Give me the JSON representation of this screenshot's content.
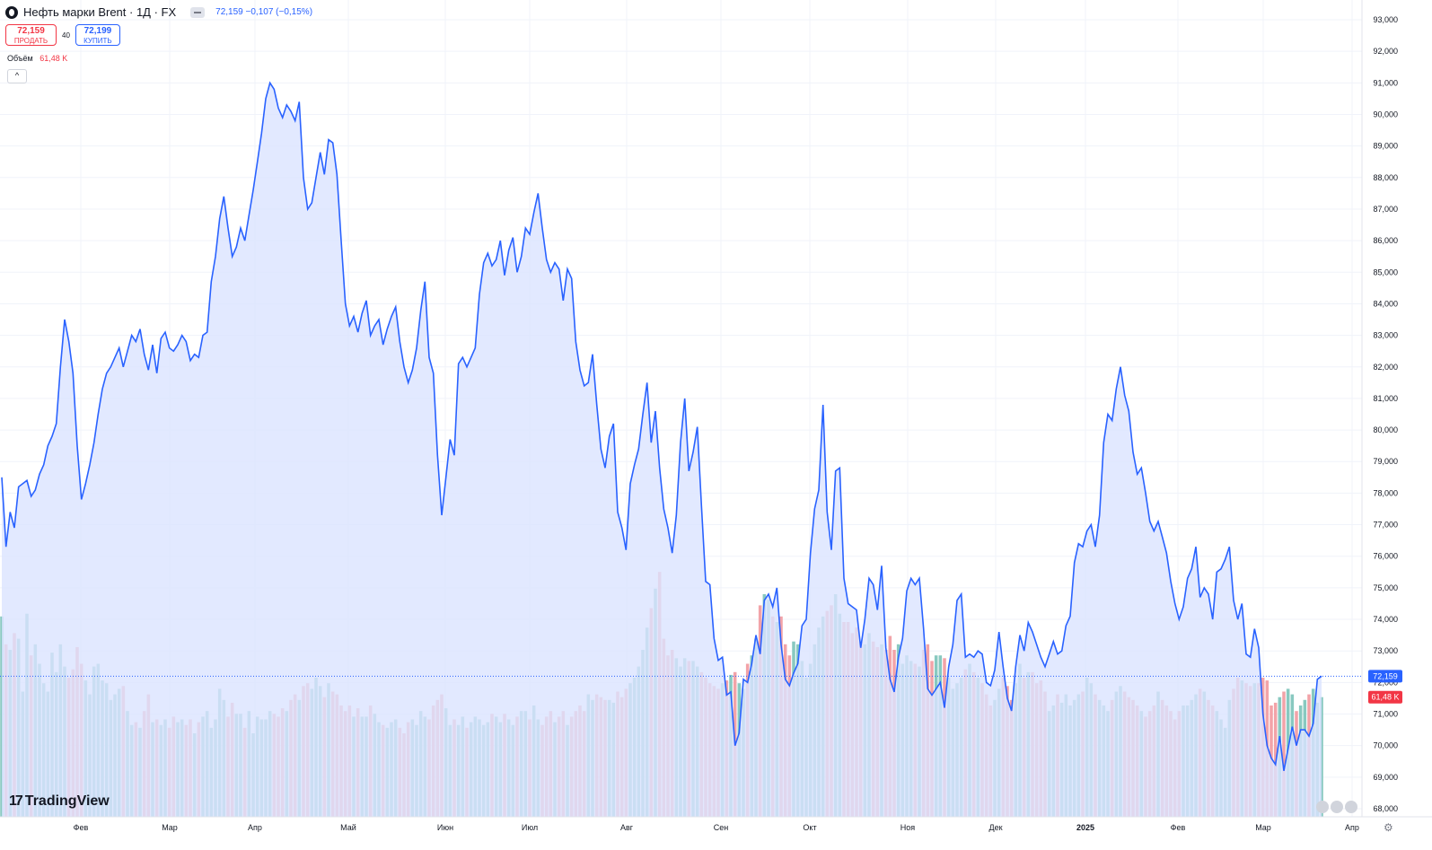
{
  "header": {
    "title": "Нефть марки Brent · 1Д · FX",
    "quote": "72,159 −0,107 (−0,15%)"
  },
  "trade": {
    "sell_price": "72,159",
    "sell_label": "ПРОДАТЬ",
    "spread": "40",
    "buy_price": "72,199",
    "buy_label": "КУПИТЬ"
  },
  "volume_legend": {
    "label": "Объём",
    "value": "61,48 K"
  },
  "collapse_glyph": "^",
  "logo": {
    "text": "TradingView"
  },
  "colors": {
    "line": "#2962ff",
    "area": "#dbe4ff",
    "vol_up": "#88c9c0",
    "vol_down": "#f2a3a8",
    "price_label": "#2962ff",
    "vol_label": "#f23645"
  },
  "chart_data": {
    "type": "area",
    "title": "Нефть марки Brent · 1Д · FX",
    "y_axis": {
      "min": 67.6,
      "max": 93.4,
      "ticks": [
        "93,000",
        "92,000",
        "91,000",
        "90,000",
        "89,000",
        "88,000",
        "87,000",
        "86,000",
        "85,000",
        "84,000",
        "83,000",
        "82,000",
        "81,000",
        "80,000",
        "79,000",
        "78,000",
        "77,000",
        "76,000",
        "75,000",
        "74,000",
        "73,000",
        "72,000",
        "71,000",
        "70,000",
        "69,000",
        "68,000"
      ],
      "tick_values": [
        93,
        92,
        91,
        90,
        89,
        88,
        87,
        86,
        85,
        84,
        83,
        82,
        81,
        80,
        79,
        78,
        77,
        76,
        75,
        74,
        73,
        72,
        71,
        70,
        69,
        68
      ]
    },
    "x_axis": {
      "labels": [
        "Фев",
        "Мар",
        "Апр",
        "Май",
        "Июн",
        "Июл",
        "Авг",
        "Сен",
        "Окт",
        "Ноя",
        "Дек",
        "2025",
        "Фев",
        "Мар",
        "Апр"
      ]
    },
    "last_price_label": "72,159",
    "volume_label": "61,48 K",
    "grid": true,
    "series": [
      {
        "values": [
          78.5,
          76.3,
          77.4,
          76.9,
          78.2,
          78.3,
          78.4,
          77.9,
          78.1,
          78.6,
          78.9,
          79.5,
          79.8,
          80.2,
          82.0,
          83.5,
          82.8,
          81.8,
          79.5,
          77.8,
          78.3,
          78.9,
          79.6,
          80.5,
          81.3,
          81.8,
          82.0,
          82.3,
          82.6,
          82.0,
          82.5,
          83.0,
          82.8,
          83.2,
          82.4,
          81.9,
          82.7,
          81.8,
          82.9,
          83.1,
          82.6,
          82.5,
          82.7,
          83.0,
          82.8,
          82.2,
          82.4,
          82.3,
          83.0,
          83.1,
          84.7,
          85.5,
          86.7,
          87.4,
          86.4,
          85.5,
          85.8,
          86.4,
          86.0,
          86.8,
          87.6,
          88.5,
          89.4,
          90.5,
          91.0,
          90.8,
          90.2,
          89.9,
          90.3,
          90.1,
          89.8,
          90.4,
          88.0,
          87.0,
          87.2,
          88.0,
          88.8,
          88.1,
          89.2,
          89.1,
          88.1,
          86.0,
          84.0,
          83.3,
          83.6,
          83.1,
          83.7,
          84.1,
          83.0,
          83.3,
          83.5,
          82.7,
          83.2,
          83.6,
          83.9,
          82.8,
          82.0,
          81.5,
          81.9,
          82.6,
          83.8,
          84.7,
          82.3,
          81.8,
          79.2,
          77.3,
          78.5,
          79.7,
          79.2,
          82.1,
          82.3,
          82.0,
          82.3,
          82.6,
          84.3,
          85.3,
          85.6,
          85.2,
          85.4,
          86.0,
          84.9,
          85.7,
          86.1,
          85.0,
          85.5,
          86.4,
          86.2,
          86.9,
          87.5,
          86.4,
          85.4,
          85.0,
          85.3,
          85.1,
          84.1,
          85.1,
          84.8,
          82.8,
          81.9,
          81.4,
          81.5,
          82.4,
          80.8,
          79.4,
          78.8,
          79.8,
          80.2,
          77.4,
          76.9,
          76.2,
          78.3,
          78.9,
          79.4,
          80.5,
          81.5,
          79.6,
          80.6,
          78.8,
          77.5,
          76.9,
          76.1,
          77.3,
          79.6,
          81.0,
          78.7,
          79.3,
          80.1,
          77.6,
          75.2,
          75.1,
          73.4,
          72.7,
          72.8,
          71.6,
          71.7,
          70.0,
          70.4,
          72.1,
          72.0,
          72.6,
          73.5,
          72.9,
          74.6,
          74.8,
          74.4,
          75.0,
          73.2,
          72.1,
          71.9,
          72.3,
          72.6,
          73.8,
          74.0,
          76.1,
          77.5,
          78.1,
          80.8,
          77.4,
          76.2,
          78.7,
          78.8,
          75.3,
          74.5,
          74.4,
          74.3,
          73.1,
          74.0,
          75.3,
          75.1,
          74.3,
          75.7,
          73.1,
          72.1,
          71.7,
          72.8,
          73.4,
          74.9,
          75.3,
          75.1,
          75.3,
          73.7,
          71.8,
          71.6,
          71.8,
          72.0,
          71.2,
          72.5,
          73.2,
          74.6,
          74.8,
          72.8,
          72.9,
          72.8,
          73.0,
          72.9,
          72.0,
          71.9,
          72.4,
          73.6,
          72.5,
          71.5,
          71.1,
          72.5,
          73.5,
          73.0,
          73.9,
          73.6,
          73.2,
          72.8,
          72.5,
          72.9,
          73.3,
          72.9,
          73.0,
          73.8,
          74.1,
          75.8,
          76.4,
          76.3,
          76.8,
          77.0,
          76.3,
          77.3,
          79.6,
          80.5,
          80.3,
          81.3,
          82.0,
          81.1,
          80.6,
          79.3,
          78.6,
          78.8,
          78.0,
          77.1,
          76.8,
          77.1,
          76.6,
          76.1,
          75.2,
          74.5,
          74.0,
          74.4,
          75.3,
          75.6,
          76.3,
          74.7,
          75.0,
          74.8,
          74.0,
          75.5,
          75.6,
          75.9,
          76.3,
          74.6,
          74.0,
          74.5,
          72.9,
          72.8,
          73.7,
          73.1,
          71.0,
          70.0,
          69.6,
          69.4,
          70.3,
          69.2,
          69.9,
          70.6,
          70.0,
          70.5,
          70.5,
          70.3,
          70.7,
          72.1,
          72.2
        ]
      },
      {
        "name": "Объём",
        "values": [
          72,
          62,
          60,
          66,
          64,
          45,
          73,
          58,
          62,
          55,
          48,
          45,
          59,
          52,
          62,
          54,
          50,
          53,
          61,
          55,
          49,
          44,
          54,
          55,
          49,
          48,
          42,
          44,
          46,
          47,
          38,
          33,
          34,
          32,
          38,
          44,
          34,
          35,
          33,
          35,
          32,
          36,
          34,
          35,
          33,
          35,
          30,
          34,
          36,
          38,
          32,
          35,
          46,
          42,
          36,
          41,
          37,
          37,
          32,
          38,
          30,
          36,
          35,
          35,
          38,
          37,
          36,
          39,
          38,
          42,
          44,
          42,
          47,
          48,
          46,
          50,
          47,
          43,
          48,
          45,
          44,
          40,
          38,
          40,
          36,
          39,
          36,
          36,
          40,
          37,
          34,
          33,
          32,
          34,
          35,
          32,
          30,
          34,
          35,
          33,
          38,
          36,
          35,
          40,
          42,
          44,
          39,
          33,
          35,
          33,
          36,
          32,
          34,
          36,
          35,
          33,
          34,
          37,
          36,
          34,
          37,
          35,
          33,
          36,
          38,
          38,
          35,
          40,
          35,
          33,
          36,
          38,
          34,
          36,
          38,
          33,
          36,
          38,
          40,
          38,
          44,
          42,
          44,
          43,
          42,
          42,
          41,
          45,
          43,
          46,
          48,
          50,
          54,
          60,
          68,
          75,
          82,
          88,
          64,
          58,
          60,
          57,
          54,
          57,
          56,
          56,
          54,
          52,
          50,
          48,
          47,
          46,
          48,
          49,
          51,
          52,
          48,
          46,
          55,
          58,
          64,
          76,
          80,
          78,
          72,
          70,
          72,
          62,
          58,
          63,
          62,
          56,
          50,
          55,
          62,
          68,
          72,
          74,
          76,
          80,
          73,
          70,
          70,
          66,
          68,
          63,
          62,
          66,
          63,
          61,
          62,
          60,
          65,
          60,
          62,
          55,
          58,
          56,
          55,
          54,
          60,
          62,
          56,
          58,
          58,
          57,
          50,
          46,
          48,
          50,
          53,
          55,
          52,
          50,
          48,
          44,
          40,
          42,
          46,
          50,
          47,
          42,
          48,
          55,
          50,
          52,
          52,
          48,
          49,
          45,
          38,
          40,
          44,
          41,
          44,
          40,
          42,
          44,
          45,
          50,
          48,
          44,
          42,
          40,
          38,
          42,
          45,
          47,
          45,
          43,
          42,
          40,
          38,
          36,
          38,
          40,
          45,
          42,
          40,
          38,
          35,
          38,
          40,
          40,
          42,
          44,
          46,
          45,
          42,
          40,
          38,
          35,
          32,
          42,
          46,
          50,
          49,
          48,
          47,
          48,
          48,
          50,
          49,
          40,
          41,
          43,
          45,
          46,
          44,
          38,
          40,
          42,
          44,
          46,
          41,
          43,
          40,
          45,
          44,
          44,
          47,
          47,
          42,
          46,
          44,
          40,
          38,
          34,
          40,
          42,
          44,
          46,
          46,
          45,
          44,
          40,
          44,
          46,
          44,
          42
        ]
      }
    ]
  }
}
